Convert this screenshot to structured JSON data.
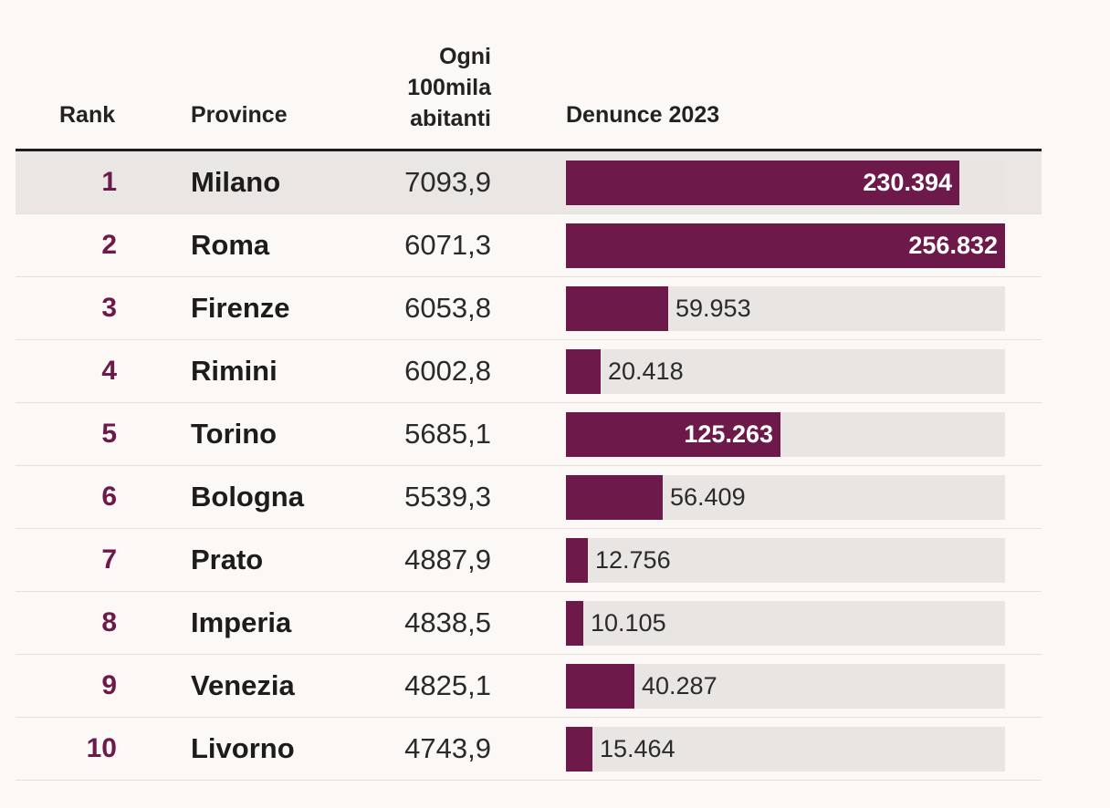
{
  "header": {
    "rank": "Rank",
    "province": "Province",
    "ogni_line1": "Ogni",
    "ogni_line2": "100mila",
    "ogni_line3": "abitanti",
    "denunce": "Denunce 2023"
  },
  "chart_data": {
    "type": "table",
    "title": "",
    "columns": [
      "Rank",
      "Province",
      "Ogni 100mila abitanti",
      "Denunce 2023"
    ],
    "max_value": 256832,
    "rows": [
      {
        "rank": "1",
        "province": "Milano",
        "per100k": "7093,9",
        "denunce": 230394,
        "denunce_label": "230.394",
        "highlight": true
      },
      {
        "rank": "2",
        "province": "Roma",
        "per100k": "6071,3",
        "denunce": 256832,
        "denunce_label": "256.832",
        "highlight": false
      },
      {
        "rank": "3",
        "province": "Firenze",
        "per100k": "6053,8",
        "denunce": 59953,
        "denunce_label": "59.953",
        "highlight": false
      },
      {
        "rank": "4",
        "province": "Rimini",
        "per100k": "6002,8",
        "denunce": 20418,
        "denunce_label": "20.418",
        "highlight": false
      },
      {
        "rank": "5",
        "province": "Torino",
        "per100k": "5685,1",
        "denunce": 125263,
        "denunce_label": "125.263",
        "highlight": false
      },
      {
        "rank": "6",
        "province": "Bologna",
        "per100k": "5539,3",
        "denunce": 56409,
        "denunce_label": "56.409",
        "highlight": false
      },
      {
        "rank": "7",
        "province": "Prato",
        "per100k": "4887,9",
        "denunce": 12756,
        "denunce_label": "12.756",
        "highlight": false
      },
      {
        "rank": "8",
        "province": "Imperia",
        "per100k": "4838,5",
        "denunce": 10105,
        "denunce_label": "10.105",
        "highlight": false
      },
      {
        "rank": "9",
        "province": "Venezia",
        "per100k": "4825,1",
        "denunce": 40287,
        "denunce_label": "40.287",
        "highlight": false
      },
      {
        "rank": "10",
        "province": "Livorno",
        "per100k": "4743,9",
        "denunce": 15464,
        "denunce_label": "15.464",
        "highlight": false
      }
    ]
  },
  "colors": {
    "bar": "#6d1a4b",
    "track": "#e8e5e2",
    "rank": "#6d1a4b"
  }
}
